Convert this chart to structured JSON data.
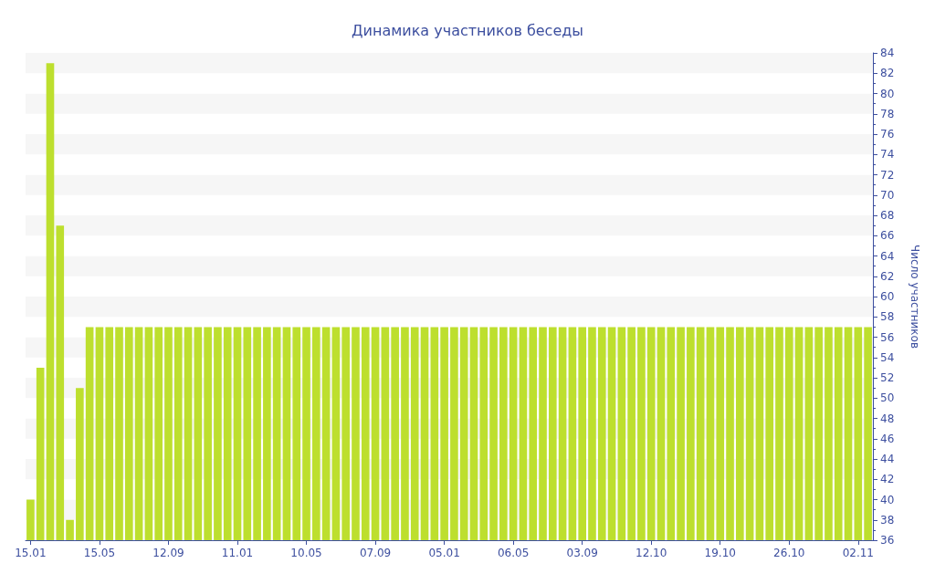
{
  "chart_data": {
    "type": "bar",
    "title": "Динамика участников беседы",
    "ylabel": "Число участников",
    "categories": [
      "15.01",
      null,
      null,
      null,
      null,
      null,
      null,
      "15.05",
      null,
      null,
      null,
      null,
      null,
      null,
      "12.09",
      null,
      null,
      null,
      null,
      null,
      null,
      "11.01",
      null,
      null,
      null,
      null,
      null,
      null,
      "10.05",
      null,
      null,
      null,
      null,
      null,
      null,
      "07.09",
      null,
      null,
      null,
      null,
      null,
      null,
      "05.01",
      null,
      null,
      null,
      null,
      null,
      null,
      "06.05",
      null,
      null,
      null,
      null,
      null,
      null,
      "03.09",
      null,
      null,
      null,
      null,
      null,
      null,
      "12.10",
      null,
      null,
      null,
      null,
      null,
      null,
      "19.10",
      null,
      null,
      null,
      null,
      null,
      null,
      "26.10",
      null,
      null,
      null,
      null,
      null,
      null,
      "02.11",
      null
    ],
    "values": [
      40,
      53,
      83,
      67,
      38,
      51,
      57,
      57,
      57,
      57,
      57,
      57,
      57,
      57,
      57,
      57,
      57,
      57,
      57,
      57,
      57,
      57,
      57,
      57,
      57,
      57,
      57,
      57,
      57,
      57,
      57,
      57,
      57,
      57,
      57,
      57,
      57,
      57,
      57,
      57,
      57,
      57,
      57,
      57,
      57,
      57,
      57,
      57,
      57,
      57,
      57,
      57,
      57,
      57,
      57,
      57,
      57,
      57,
      57,
      57,
      57,
      57,
      57,
      57,
      57,
      57,
      57,
      57,
      57,
      57,
      57,
      57,
      57,
      57,
      57,
      57,
      57,
      57,
      57,
      57,
      57,
      57,
      57,
      57,
      57,
      57
    ],
    "color": "#bddf2e",
    "ylim": [
      36,
      84
    ],
    "yticks": [
      36,
      38,
      40,
      42,
      44,
      46,
      48,
      50,
      52,
      54,
      56,
      58,
      60,
      62,
      64,
      66,
      68,
      70,
      72,
      74,
      76,
      78,
      80,
      82,
      84
    ]
  }
}
